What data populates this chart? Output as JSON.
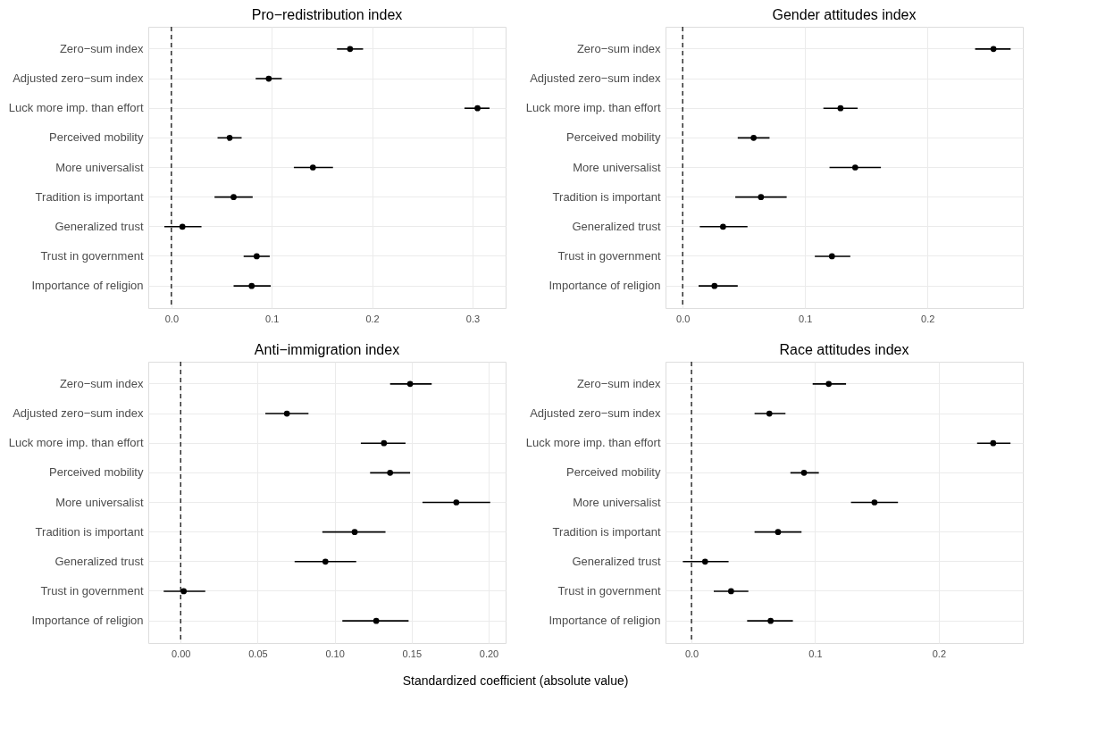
{
  "chart_data": [
    {
      "type": "scatter",
      "orientation": "horizontal",
      "title": "Pro−redistribution index",
      "categories": [
        "Zero−sum index",
        "Adjusted zero−sum index",
        "Luck more imp. than effort",
        "Perceived mobility",
        "More universalist",
        "Tradition is important",
        "Generalized trust",
        "Trust in government",
        "Importance of religion"
      ],
      "series": [
        {
          "color": "#000000",
          "values": [
            0.178,
            0.097,
            0.305,
            0.058,
            0.141,
            0.062,
            0.011,
            0.085,
            0.08
          ],
          "errors": [
            [
              0.165,
              0.191
            ],
            [
              0.084,
              0.11
            ],
            [
              0.292,
              0.317
            ],
            [
              0.046,
              0.07
            ],
            [
              0.122,
              0.161
            ],
            [
              0.043,
              0.081
            ],
            [
              -0.007,
              0.03
            ],
            [
              0.072,
              0.098
            ],
            [
              0.062,
              0.099
            ]
          ]
        }
      ],
      "xlim": [
        -0.023,
        0.333
      ],
      "xticks": [
        {
          "value": 0,
          "label": "0.0"
        },
        0.1,
        0.2,
        0.3
      ],
      "ref_lines": [
        {
          "axis": "x",
          "value": 0,
          "line_style": "dashed",
          "color": "#000000"
        }
      ],
      "grid": true,
      "marker": "circle"
    },
    {
      "type": "scatter",
      "orientation": "horizontal",
      "title": "Gender attitudes index",
      "categories": [
        "Zero−sum index",
        "Adjusted zero−sum index",
        "Luck more imp. than effort",
        "Perceived mobility",
        "More universalist",
        "Tradition is important",
        "Generalized trust",
        "Trust in government",
        "Importance of religion"
      ],
      "series": [
        {
          "color": "#000000",
          "values": [
            0.254,
            null,
            0.129,
            0.058,
            0.141,
            0.064,
            0.033,
            0.122,
            0.026
          ],
          "errors": [
            [
              0.239,
              0.268
            ],
            null,
            [
              0.115,
              0.143
            ],
            [
              0.045,
              0.071
            ],
            [
              0.12,
              0.162
            ],
            [
              0.043,
              0.085
            ],
            [
              0.014,
              0.053
            ],
            [
              0.108,
              0.137
            ],
            [
              0.013,
              0.045
            ]
          ]
        }
      ],
      "xlim": [
        -0.014,
        0.278
      ],
      "xticks": [
        {
          "value": 0,
          "label": "0.0"
        },
        0.1,
        0.2
      ],
      "ref_lines": [
        {
          "axis": "x",
          "value": 0,
          "line_style": "dashed",
          "color": "#000000"
        }
      ],
      "grid": true,
      "marker": "circle"
    },
    {
      "type": "scatter",
      "orientation": "horizontal",
      "title": "Anti−immigration index",
      "xlabel": "Standardized coefficient (absolute value)",
      "categories": [
        "Zero−sum index",
        "Adjusted zero−sum index",
        "Luck more imp. than effort",
        "Perceived mobility",
        "More universalist",
        "Tradition is important",
        "Generalized trust",
        "Trust in government",
        "Importance of religion"
      ],
      "series": [
        {
          "color": "#000000",
          "values": [
            0.149,
            0.069,
            0.132,
            0.136,
            0.179,
            0.113,
            0.094,
            0.002,
            0.127
          ],
          "errors": [
            [
              0.136,
              0.163
            ],
            [
              0.055,
              0.083
            ],
            [
              0.117,
              0.146
            ],
            [
              0.123,
              0.149
            ],
            [
              0.157,
              0.201
            ],
            [
              0.092,
              0.133
            ],
            [
              0.074,
              0.114
            ],
            [
              -0.011,
              0.016
            ],
            [
              0.105,
              0.148
            ]
          ]
        }
      ],
      "xlim": [
        -0.021,
        0.211
      ],
      "xticks": [
        {
          "value": 0,
          "label": "0.00"
        },
        0.05,
        {
          "value": 0.1,
          "label": "0.10"
        },
        0.15,
        {
          "value": 0.2,
          "label": "0.20"
        }
      ],
      "ref_lines": [
        {
          "axis": "x",
          "value": 0,
          "line_style": "dashed",
          "color": "#000000"
        }
      ],
      "grid": true,
      "marker": "circle"
    },
    {
      "type": "scatter",
      "orientation": "horizontal",
      "title": "Race attitudes index",
      "categories": [
        "Zero−sum index",
        "Adjusted zero−sum index",
        "Luck more imp. than effort",
        "Perceived mobility",
        "More universalist",
        "Tradition is important",
        "Generalized trust",
        "Trust in government",
        "Importance of religion"
      ],
      "series": [
        {
          "color": "#000000",
          "values": [
            0.111,
            0.063,
            0.244,
            0.091,
            0.148,
            0.07,
            0.011,
            0.032,
            0.064
          ],
          "errors": [
            [
              0.098,
              0.125
            ],
            [
              0.051,
              0.076
            ],
            [
              0.231,
              0.258
            ],
            [
              0.08,
              0.103
            ],
            [
              0.129,
              0.167
            ],
            [
              0.051,
              0.089
            ],
            [
              -0.007,
              0.03
            ],
            [
              0.018,
              0.046
            ],
            [
              0.045,
              0.082
            ]
          ]
        }
      ],
      "xlim": [
        -0.021,
        0.268
      ],
      "xticks": [
        {
          "value": 0,
          "label": "0.0"
        },
        0.1,
        0.2
      ],
      "ref_lines": [
        {
          "axis": "x",
          "value": 0,
          "line_style": "dashed",
          "color": "#000000"
        }
      ],
      "grid": true,
      "marker": "circle"
    }
  ]
}
